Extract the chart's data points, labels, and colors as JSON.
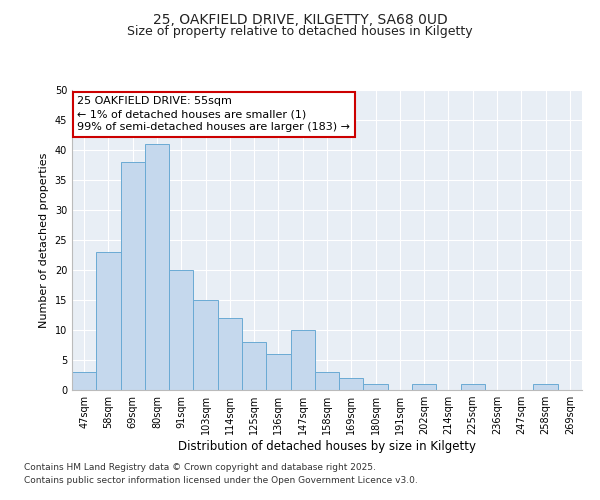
{
  "title": "25, OAKFIELD DRIVE, KILGETTY, SA68 0UD",
  "subtitle": "Size of property relative to detached houses in Kilgetty",
  "xlabel": "Distribution of detached houses by size in Kilgetty",
  "ylabel": "Number of detached properties",
  "categories": [
    "47sqm",
    "58sqm",
    "69sqm",
    "80sqm",
    "91sqm",
    "103sqm",
    "114sqm",
    "125sqm",
    "136sqm",
    "147sqm",
    "158sqm",
    "169sqm",
    "180sqm",
    "191sqm",
    "202sqm",
    "214sqm",
    "225sqm",
    "236sqm",
    "247sqm",
    "258sqm",
    "269sqm"
  ],
  "values": [
    3,
    23,
    38,
    41,
    20,
    15,
    12,
    8,
    6,
    10,
    3,
    2,
    1,
    0,
    1,
    0,
    1,
    0,
    0,
    1,
    0
  ],
  "bar_color": "#c5d8ed",
  "bar_edge_color": "#6aaad4",
  "annotation_line1": "25 OAKFIELD DRIVE: 55sqm",
  "annotation_line2": "← 1% of detached houses are smaller (1)",
  "annotation_line3": "99% of semi-detached houses are larger (183) →",
  "annotation_box_color": "#ffffff",
  "annotation_box_edge_color": "#cc0000",
  "ylim": [
    0,
    50
  ],
  "yticks": [
    0,
    5,
    10,
    15,
    20,
    25,
    30,
    35,
    40,
    45,
    50
  ],
  "background_color": "#e8eef5",
  "grid_color": "#ffffff",
  "footer_line1": "Contains HM Land Registry data © Crown copyright and database right 2025.",
  "footer_line2": "Contains public sector information licensed under the Open Government Licence v3.0.",
  "title_fontsize": 10,
  "subtitle_fontsize": 9,
  "xlabel_fontsize": 8.5,
  "ylabel_fontsize": 8,
  "tick_fontsize": 7,
  "annotation_fontsize": 8,
  "footer_fontsize": 6.5
}
